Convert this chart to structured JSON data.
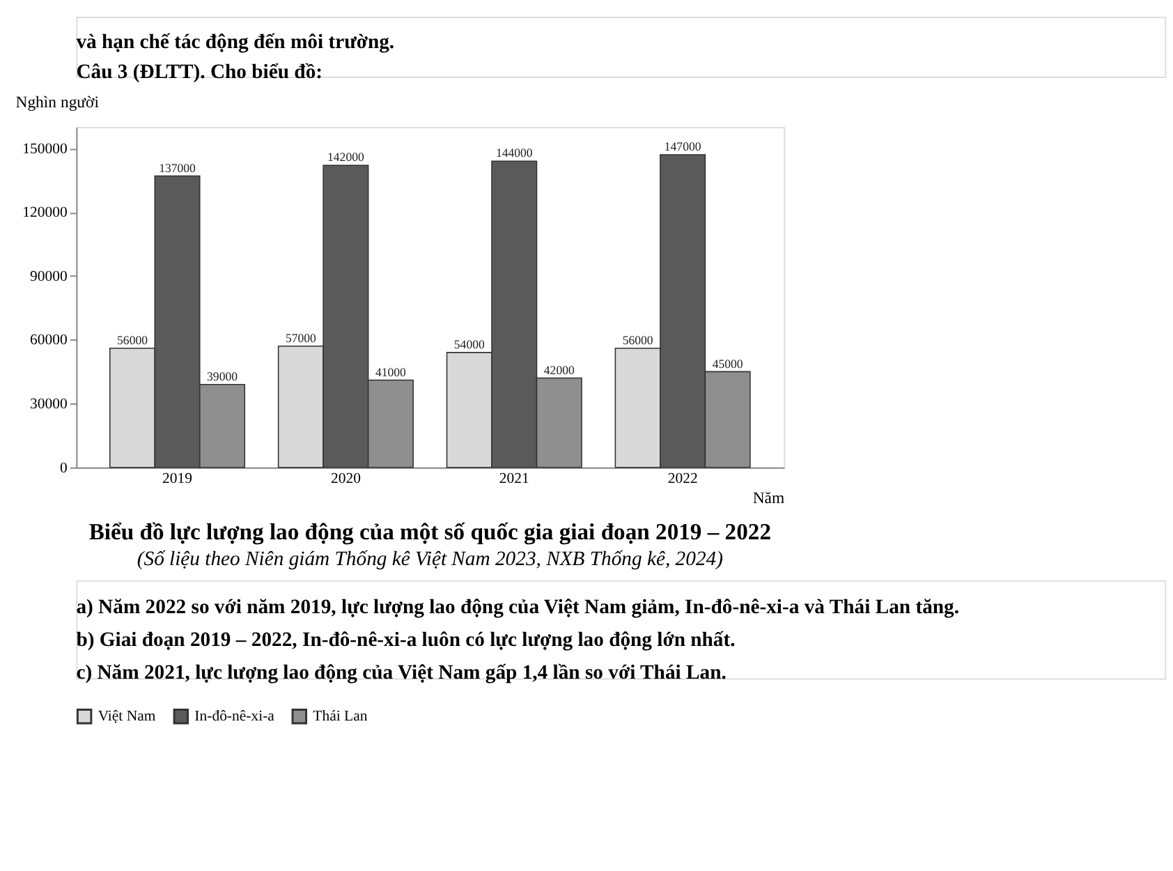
{
  "chart_data": {
    "type": "bar",
    "title": "Biểu đồ lực lượng lao động của một số quốc gia giai đoạn 2019 – 2022",
    "subtitle": "(Số liệu theo Niên giám Thống kê Việt Nam 2023, NXB Thống kê, 2024)",
    "xlabel": "Năm",
    "ylabel": "Nghìn người",
    "categories": [
      "2019",
      "2020",
      "2021",
      "2022"
    ],
    "series": [
      {
        "name": "Việt Nam",
        "color": "#d9d9d9",
        "values": [
          56000,
          57000,
          54000,
          56000
        ]
      },
      {
        "name": "In-đô-nê-xi-a",
        "color": "#5a5a5a",
        "values": [
          137000,
          142000,
          144000,
          147000
        ]
      },
      {
        "name": "Thái Lan",
        "color": "#8f8f8f",
        "values": [
          39000,
          41000,
          42000,
          45000
        ]
      }
    ],
    "ylim": [
      0,
      160000
    ],
    "yticks": [
      0,
      30000,
      60000,
      90000,
      120000,
      150000
    ],
    "data_labels": true,
    "grid": false,
    "legend": "bottom",
    "annotations": [
      "và hạn chế tác động đến môi trường.",
      "Câu 3 (ĐLTT). Cho biểu đồ:",
      "a) Năm 2022 so với năm 2019, lực lượng lao động của Việt Nam giảm, In-đô-nê-xi-a và Thái Lan tăng.",
      "b) Giai đoạn 2019 – 2022, In-đô-nê-xi-a luôn có lực lượng lao động lớn nhất.",
      "c) Năm 2021, lực lượng lao động của Việt Nam gấp 1,4 lần so với Thái Lan."
    ]
  }
}
